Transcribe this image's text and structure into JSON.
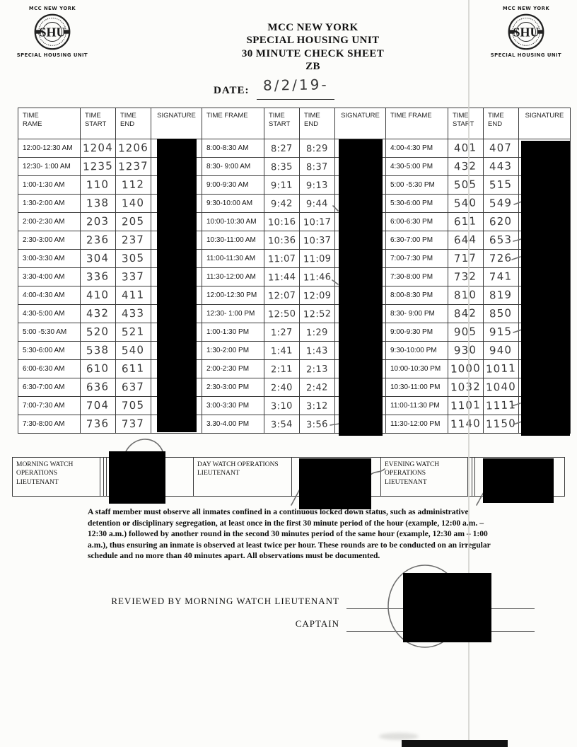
{
  "logos": {
    "left": {
      "top": "MCC NEW YORK",
      "seal": "SHU",
      "bottom": "SPECIAL HOUSING UNIT"
    },
    "right": {
      "top": "MCC NEW YORK",
      "seal": "SHU",
      "bottom": "SPECIAL HOUSING UNIT"
    }
  },
  "header": {
    "title_lines": [
      "MCC NEW YORK",
      "SPECIAL HOUSING UNIT",
      "30 MINUTE CHECK SHEET",
      "ZB"
    ],
    "date_label": "DATE:",
    "date_value": "8/2/19-"
  },
  "table": {
    "column_headers": [
      "TIME\nRAME",
      "TIME\nSTART",
      "TIME\nEND",
      "SIGNATURE",
      "TIME FRAME",
      "TIME\nSTART",
      "TIME\nEND",
      "SIGNATURE",
      "TIME FRAME",
      "TIME\nSTART",
      "TIME\nEND",
      "SIGNATURE"
    ],
    "signatures_redacted": true,
    "groups": [
      {
        "rows": [
          {
            "frame": "12:00-12:30 AM",
            "start": "1204",
            "end": "1206"
          },
          {
            "frame": "12:30- 1:00 AM",
            "start": "1235",
            "end": "1237"
          },
          {
            "frame": "1:00-1:30 AM",
            "start": "110",
            "end": "112"
          },
          {
            "frame": "1:30-2:00 AM",
            "start": "138",
            "end": "140"
          },
          {
            "frame": "2:00-2:30 AM",
            "start": "203",
            "end": "205"
          },
          {
            "frame": "2:30-3:00 AM",
            "start": "236",
            "end": "237"
          },
          {
            "frame": "3:00-3:30 AM",
            "start": "304",
            "end": "305"
          },
          {
            "frame": "3:30-4:00 AM",
            "start": "336",
            "end": "337"
          },
          {
            "frame": "4:00-4:30 AM",
            "start": "410",
            "end": "411"
          },
          {
            "frame": "4:30-5:00 AM",
            "start": "432",
            "end": "433"
          },
          {
            "frame": "5:00 -5:30 AM",
            "start": "520",
            "end": "521"
          },
          {
            "frame": "5:30-6:00 AM",
            "start": "538",
            "end": "540"
          },
          {
            "frame": "6:00-6:30 AM",
            "start": "610",
            "end": "611"
          },
          {
            "frame": "6:30-7:00 AM",
            "start": "636",
            "end": "637"
          },
          {
            "frame": "7:00-7:30 AM",
            "start": "704",
            "end": "705"
          },
          {
            "frame": "7:30-8:00 AM",
            "start": "736",
            "end": "737"
          }
        ]
      },
      {
        "rows": [
          {
            "frame": "8:00-8:30 AM",
            "start": "8:27",
            "end": "8:29"
          },
          {
            "frame": "8:30- 9:00 AM",
            "start": "8:35",
            "end": "8:37"
          },
          {
            "frame": "9:00-9:30 AM",
            "start": "9:11",
            "end": "9:13"
          },
          {
            "frame": "9:30-10:00 AM",
            "start": "9:42",
            "end": "9:44"
          },
          {
            "frame": "10:00-10:30 AM",
            "start": "10:16",
            "end": "10:17"
          },
          {
            "frame": "10:30-11:00 AM",
            "start": "10:36",
            "end": "10:37"
          },
          {
            "frame": "11:00-11:30 AM",
            "start": "11:07",
            "end": "11:09"
          },
          {
            "frame": "11:30-12:00 AM",
            "start": "11:44",
            "end": "11:46"
          },
          {
            "frame": "12:00-12:30 PM",
            "start": "12:07",
            "end": "12:09"
          },
          {
            "frame": "12:30- 1:00 PM",
            "start": "12:50",
            "end": "12:52"
          },
          {
            "frame": "1:00-1:30 PM",
            "start": "1:27",
            "end": "1:29"
          },
          {
            "frame": "1:30-2:00 PM",
            "start": "1:41",
            "end": "1:43"
          },
          {
            "frame": "2:00-2:30 PM",
            "start": "2:11",
            "end": "2:13"
          },
          {
            "frame": "2:30-3:00 PM",
            "start": "2:40",
            "end": "2:42"
          },
          {
            "frame": "3:00-3:30 PM",
            "start": "3:10",
            "end": "3:12"
          },
          {
            "frame": "3.30-4.00 PM",
            "start": "3:54",
            "end": "3:56"
          }
        ]
      },
      {
        "rows": [
          {
            "frame": "4:00-4:30 PM",
            "start": "401",
            "end": "407"
          },
          {
            "frame": "4:30-5:00 PM",
            "start": "432",
            "end": "443"
          },
          {
            "frame": "5:00 -5:30 PM",
            "start": "505",
            "end": "515"
          },
          {
            "frame": "5:30-6:00 PM",
            "start": "540",
            "end": "549"
          },
          {
            "frame": "6:00-6:30 PM",
            "start": "611",
            "end": "620"
          },
          {
            "frame": "6:30-7:00 PM",
            "start": "644",
            "end": "653"
          },
          {
            "frame": "7:00-7:30 PM",
            "start": "717",
            "end": "726"
          },
          {
            "frame": "7:30-8:00 PM",
            "start": "732",
            "end": "741"
          },
          {
            "frame": "8:00-8:30 PM",
            "start": "810",
            "end": "819"
          },
          {
            "frame": "8:30- 9:00 PM",
            "start": "842",
            "end": "850"
          },
          {
            "frame": "9:00-9:30 PM",
            "start": "905",
            "end": "915"
          },
          {
            "frame": "9:30-10:00 PM",
            "start": "930",
            "end": "940"
          },
          {
            "frame": "10:00-10:30 PM",
            "start": "1000",
            "end": "1011"
          },
          {
            "frame": "10:30-11:00 PM",
            "start": "1032",
            "end": "1040"
          },
          {
            "frame": "11:00-11:30 PM",
            "start": "1101",
            "end": "1111"
          },
          {
            "frame": "11:30-12:00 PM",
            "start": "1140",
            "end": "1150"
          }
        ]
      }
    ]
  },
  "watch_strip": {
    "labels": [
      "MORNING WATCH OPERATIONS LIEUTENANT",
      "DAY WATCH OPERATIONS LIEUTENANT",
      "EVENING WATCH OPERATIONS LIEUTENANT"
    ]
  },
  "notice": {
    "text": "A staff member must observe all inmates confined in a continuous locked down status, such as administrative detention or disciplinary segregation, at least once in the first 30 minute period of the hour (example, 12:00 a.m. – 12:30 a.m.) followed by another round in the second 30 minutes period of the same hour (example, 12:30 am – 1:00 a.m.), thus ensuring an inmate is observed at least twice per hour. These rounds are to be conducted on an irregular schedule and no more than 40 minutes apart. All observations must be documented."
  },
  "review": {
    "reviewed_label": "REVIEWED BY MORNING WATCH LIEUTENANT",
    "captain_label": "CAPTAIN"
  }
}
